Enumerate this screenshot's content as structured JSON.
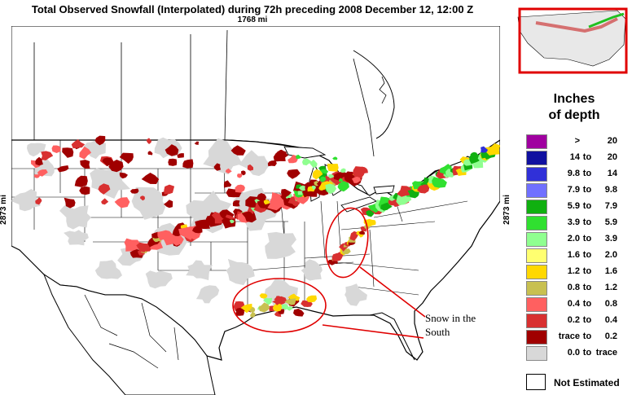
{
  "header": {
    "title": "Total Observed Snowfall (Interpolated) during 72h preceding 2008 December 12, 12:00 Z",
    "scale_horizontal": "1768 mi",
    "scale_vertical": "2873 mi"
  },
  "legend": {
    "title_line1": "Inches",
    "title_line2": "of depth",
    "items": [
      {
        "lo": ">",
        "to": "",
        "hi": "20",
        "color": "#a000a0"
      },
      {
        "lo": "14",
        "to": "to",
        "hi": "20",
        "color": "#1010a0"
      },
      {
        "lo": "9.8",
        "to": "to",
        "hi": "14",
        "color": "#3030d8"
      },
      {
        "lo": "7.9",
        "to": "to",
        "hi": "9.8",
        "color": "#7070ff"
      },
      {
        "lo": "5.9",
        "to": "to",
        "hi": "7.9",
        "color": "#10b010"
      },
      {
        "lo": "3.9",
        "to": "to",
        "hi": "5.9",
        "color": "#30e030"
      },
      {
        "lo": "2.0",
        "to": "to",
        "hi": "3.9",
        "color": "#90ff90"
      },
      {
        "lo": "1.6",
        "to": "to",
        "hi": "2.0",
        "color": "#ffff70"
      },
      {
        "lo": "1.2",
        "to": "to",
        "hi": "1.6",
        "color": "#ffd800"
      },
      {
        "lo": "0.8",
        "to": "to",
        "hi": "1.2",
        "color": "#c8c050"
      },
      {
        "lo": "0.4",
        "to": "to",
        "hi": "0.8",
        "color": "#ff6060"
      },
      {
        "lo": "0.2",
        "to": "to",
        "hi": "0.4",
        "color": "#d83030"
      },
      {
        "lo": "trace",
        "to": "to",
        "hi": "0.2",
        "color": "#a00000"
      },
      {
        "lo": "0.0",
        "to": "to",
        "hi": "trace",
        "color": "#d8d8d8"
      }
    ],
    "not_estimated": "Not Estimated"
  },
  "annotation": {
    "line1": "Snow in the",
    "line2": "South",
    "color": "#e00000"
  },
  "inset": {
    "frame_color": "#e00000"
  },
  "map": {
    "water_color": "#ffffff",
    "border_color": "#000000"
  }
}
